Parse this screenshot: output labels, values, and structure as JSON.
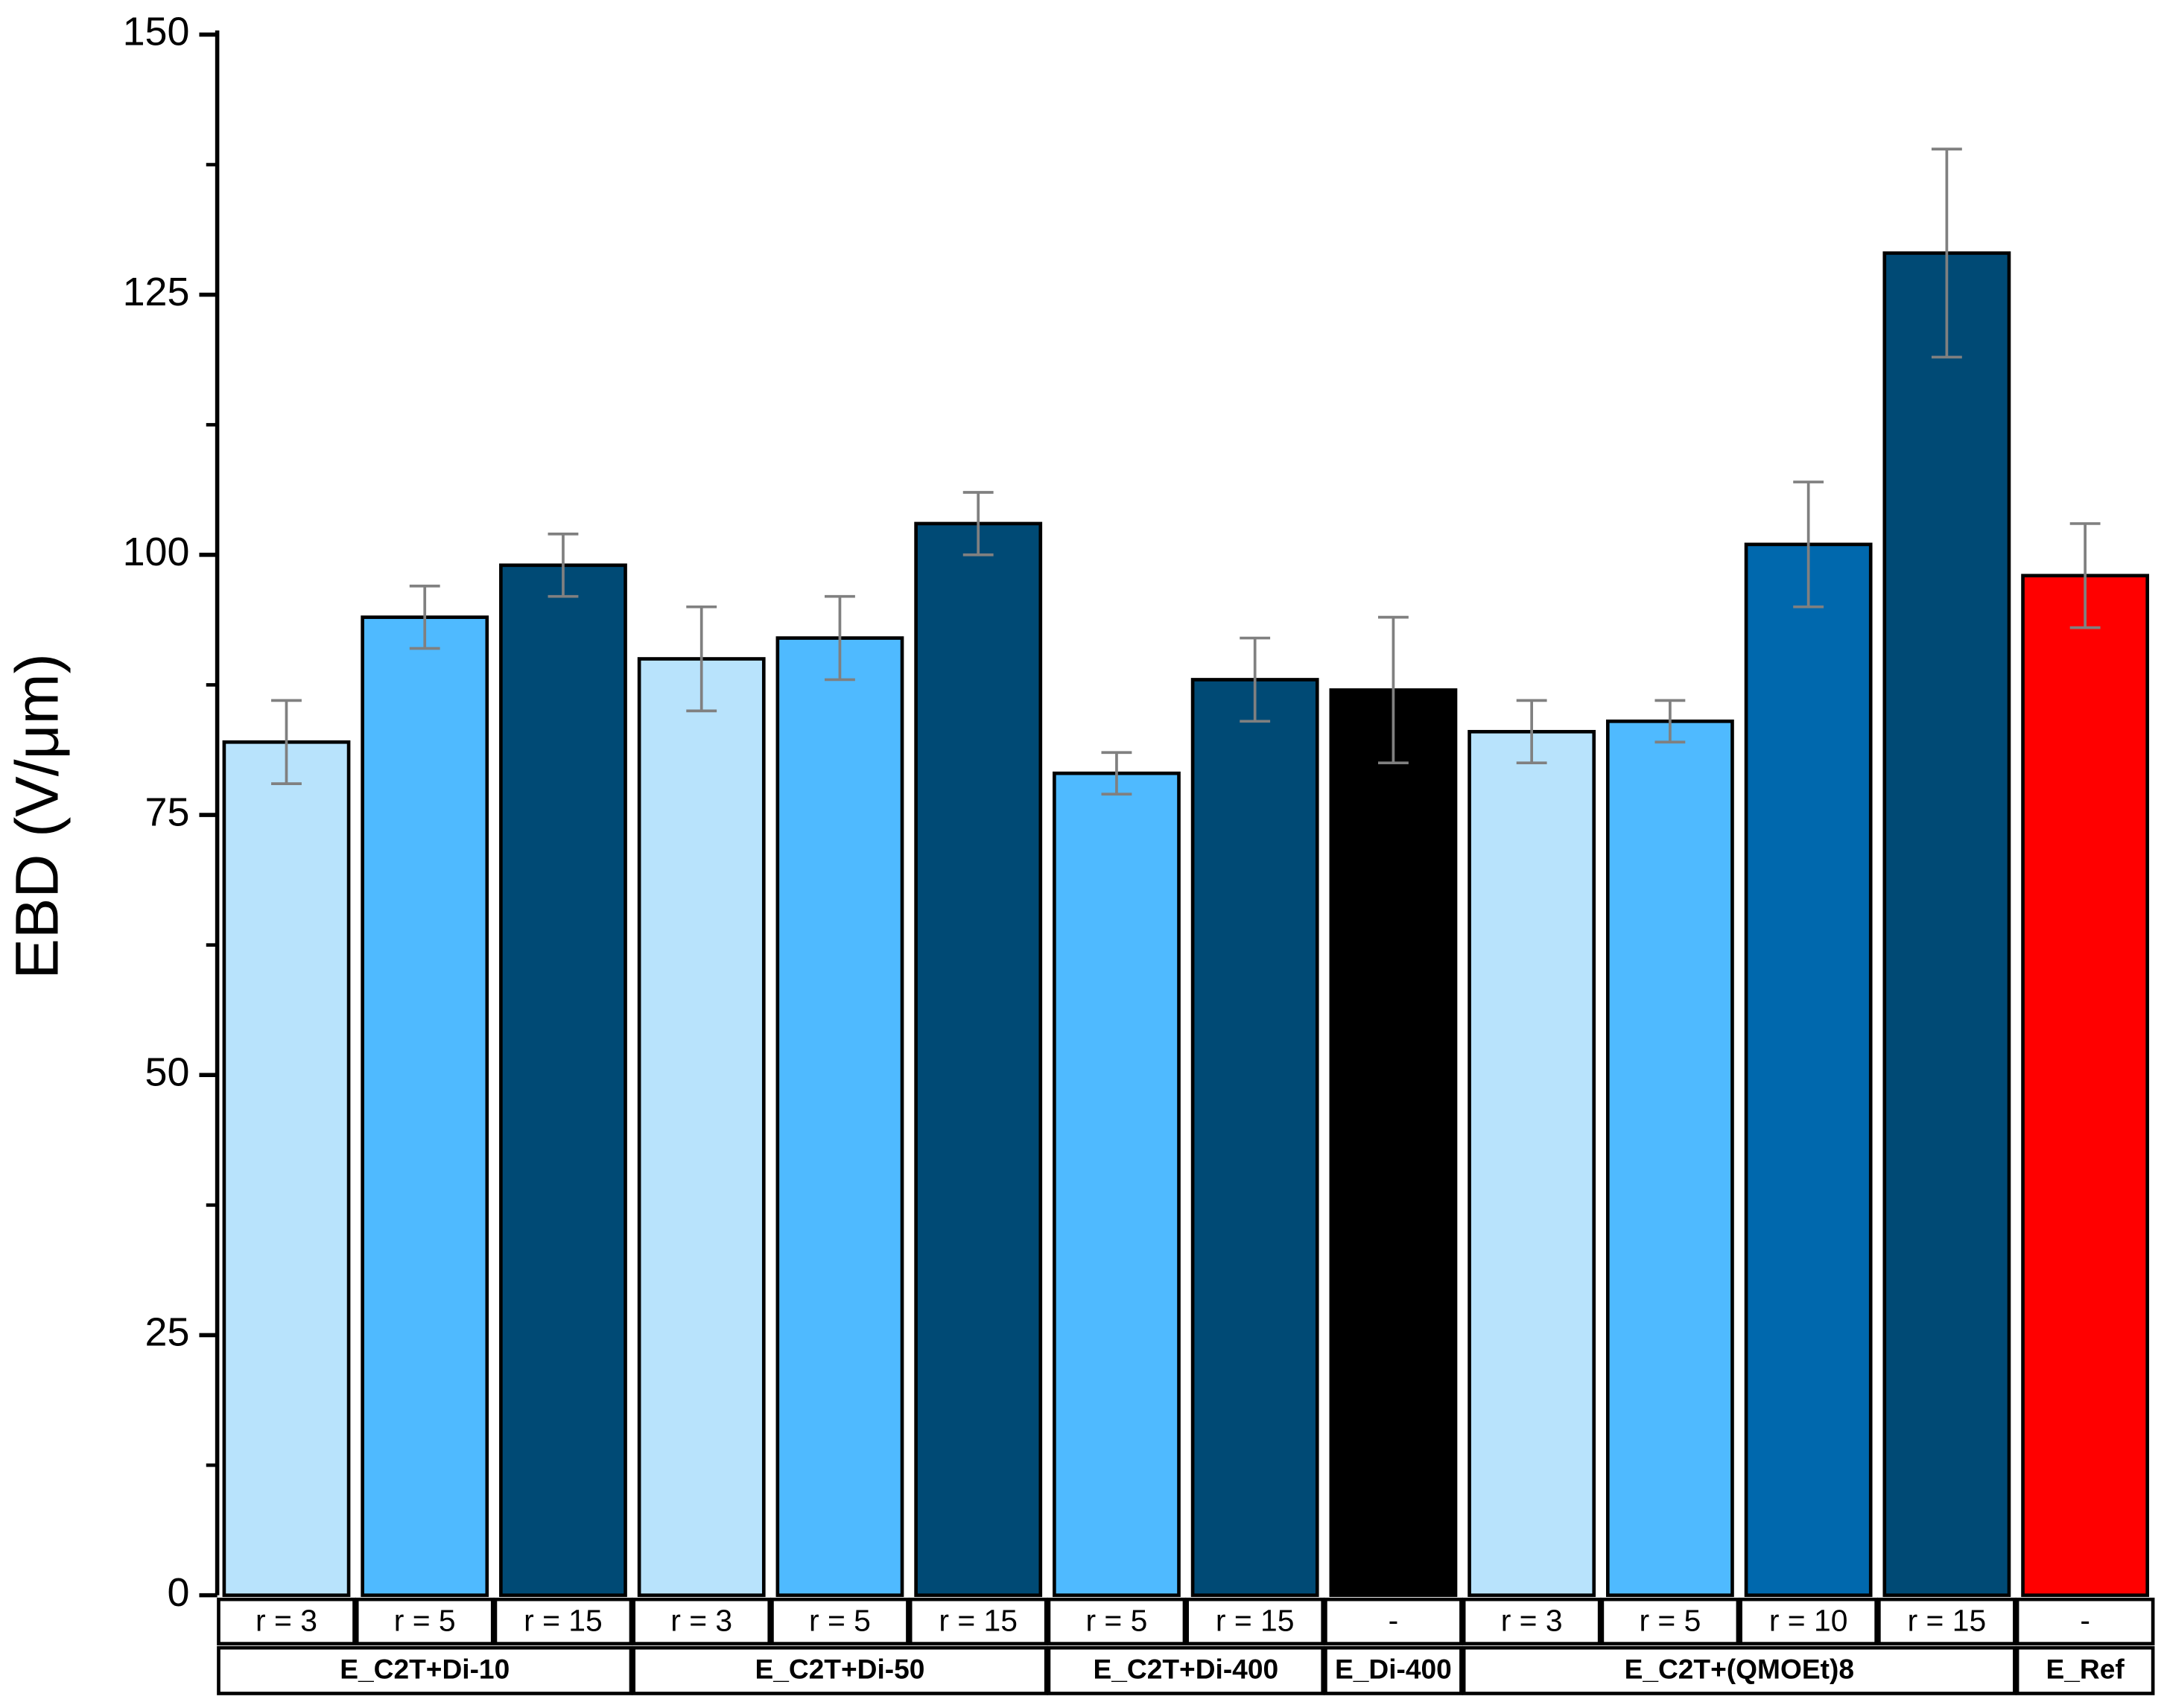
{
  "chart_data": {
    "type": "bar",
    "y_label": "EBD (V/μm)",
    "ylim": [
      0,
      150
    ],
    "yticks": [
      0,
      25,
      50,
      75,
      100,
      125,
      150
    ],
    "yminor_ticks": [
      12.5,
      37.5,
      62.5,
      87.5,
      112.5,
      137.5
    ],
    "error_color": "#808080",
    "groups": [
      {
        "label": "E_C2T+Di-10",
        "categories": [
          "r = 3",
          "r = 5",
          "r = 15"
        ],
        "values": [
          82,
          94,
          99
        ],
        "errors": [
          4,
          3,
          3
        ],
        "colors": [
          "#b8e3fc",
          "#4fbaff",
          "#004a75"
        ]
      },
      {
        "label": "E_C2T+Di-50",
        "categories": [
          "r = 3",
          "r = 5",
          "r = 15"
        ],
        "values": [
          90,
          92,
          103
        ],
        "errors": [
          5,
          4,
          3
        ],
        "colors": [
          "#b8e3fc",
          "#4fbaff",
          "#004a75"
        ]
      },
      {
        "label": "E_C2T+Di-400",
        "categories": [
          "r = 5",
          "r = 15"
        ],
        "values": [
          79,
          88
        ],
        "errors": [
          2,
          4
        ],
        "colors": [
          "#4fbaff",
          "#004a75"
        ]
      },
      {
        "label": "E_Di-400",
        "categories": [
          "-"
        ],
        "values": [
          87
        ],
        "errors": [
          7
        ],
        "colors": [
          "#000000"
        ]
      },
      {
        "label": "E_C2T+(QMOEt)8",
        "categories": [
          "r = 3",
          "r = 5",
          "r = 10",
          "r = 15"
        ],
        "values": [
          83,
          84,
          101,
          129
        ],
        "errors": [
          3,
          2,
          6,
          10
        ],
        "colors": [
          "#b8e3fc",
          "#4fbaff",
          "#0068ad",
          "#004a75"
        ]
      },
      {
        "label": "E_Ref",
        "categories": [
          "-"
        ],
        "values": [
          98
        ],
        "errors": [
          5
        ],
        "colors": [
          "#ff0000"
        ]
      }
    ]
  }
}
